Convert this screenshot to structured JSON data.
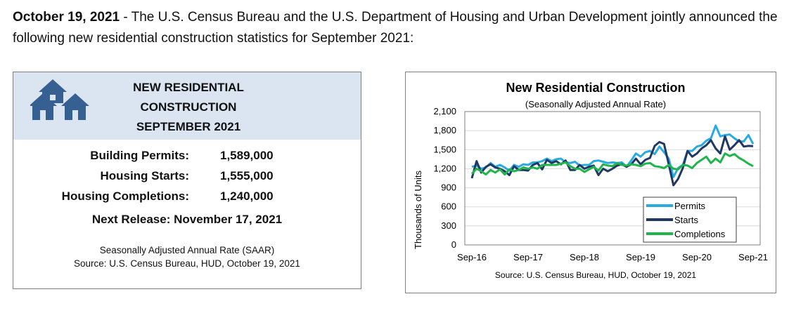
{
  "intro": {
    "date": "October 19, 2021",
    "text": " - The U.S. Census Bureau and the U.S. Department of Housing and Urban Development jointly announced the following new residential construction statistics for September 2021:"
  },
  "summary": {
    "title_lines": [
      "NEW RESIDENTIAL",
      "CONSTRUCTION",
      "SEPTEMBER 2021"
    ],
    "rows": [
      {
        "label": "Building Permits:",
        "value": "1,589,000"
      },
      {
        "label": "Housing Starts:",
        "value": "1,555,000"
      },
      {
        "label": "Housing Completions:",
        "value": "1,240,000"
      }
    ],
    "next_release": "Next Release:  November 17, 2021",
    "footnote_1": "Seasonally Adjusted Annual Rate (SAAR)",
    "footnote_2": "Source:  U.S. Census Bureau, HUD, October 19, 2021",
    "colors": {
      "header_bg": "#dbe5f1",
      "icon": "#376092"
    },
    "icon": "houses-icon"
  },
  "chart_data": {
    "type": "line",
    "title": "New Residential Construction",
    "subtitle": "(Seasonally Adjusted Annual Rate)",
    "ylabel": "Thousands of Units",
    "xlabel": "",
    "source": "Source: U.S. Census Bureau, HUD, October 19, 2021",
    "ylim": [
      0,
      2100
    ],
    "yticks": [
      0,
      300,
      600,
      900,
      1200,
      1500,
      1800,
      2100
    ],
    "ytick_labels": [
      "0",
      "300",
      "600",
      "900",
      "1,200",
      "1,500",
      "1,800",
      "2,100"
    ],
    "xtick_labels": [
      "Sep-16",
      "Sep-17",
      "Sep-18",
      "Sep-19",
      "Sep-20",
      "Sep-21"
    ],
    "xtick_index": [
      0,
      12,
      24,
      36,
      48,
      60
    ],
    "grid": true,
    "legend_position": "bottom-right",
    "x": [
      "Sep-16",
      "Oct-16",
      "Nov-16",
      "Dec-16",
      "Jan-17",
      "Feb-17",
      "Mar-17",
      "Apr-17",
      "May-17",
      "Jun-17",
      "Jul-17",
      "Aug-17",
      "Sep-17",
      "Oct-17",
      "Nov-17",
      "Dec-17",
      "Jan-18",
      "Feb-18",
      "Mar-18",
      "Apr-18",
      "May-18",
      "Jun-18",
      "Jul-18",
      "Aug-18",
      "Sep-18",
      "Oct-18",
      "Nov-18",
      "Dec-18",
      "Jan-19",
      "Feb-19",
      "Mar-19",
      "Apr-19",
      "May-19",
      "Jun-19",
      "Jul-19",
      "Aug-19",
      "Sep-19",
      "Oct-19",
      "Nov-19",
      "Dec-19",
      "Jan-20",
      "Feb-20",
      "Mar-20",
      "Apr-20",
      "May-20",
      "Jun-20",
      "Jul-20",
      "Aug-20",
      "Sep-20",
      "Oct-20",
      "Nov-20",
      "Dec-20",
      "Jan-21",
      "Feb-21",
      "Mar-21",
      "Apr-21",
      "May-21",
      "Jun-21",
      "Jul-21",
      "Aug-21",
      "Sep-21"
    ],
    "series": [
      {
        "name": "Permits",
        "color": "#29abe2",
        "values": [
          1230,
          1250,
          1200,
          1220,
          1290,
          1230,
          1260,
          1220,
          1170,
          1260,
          1230,
          1270,
          1260,
          1300,
          1300,
          1320,
          1360,
          1320,
          1350,
          1360,
          1300,
          1290,
          1310,
          1250,
          1260,
          1260,
          1320,
          1330,
          1310,
          1290,
          1300,
          1290,
          1300,
          1230,
          1330,
          1440,
          1390,
          1460,
          1480,
          1430,
          1550,
          1460,
          1360,
          1070,
          1210,
          1260,
          1480,
          1480,
          1550,
          1570,
          1640,
          1680,
          1880,
          1710,
          1730,
          1740,
          1680,
          1630,
          1630,
          1730,
          1589
        ]
      },
      {
        "name": "Starts",
        "color": "#203864",
        "values": [
          1050,
          1320,
          1140,
          1230,
          1270,
          1220,
          1200,
          1160,
          1100,
          1240,
          1180,
          1180,
          1170,
          1260,
          1290,
          1190,
          1340,
          1290,
          1320,
          1270,
          1330,
          1180,
          1180,
          1260,
          1200,
          1230,
          1250,
          1100,
          1200,
          1160,
          1200,
          1250,
          1270,
          1230,
          1270,
          1360,
          1270,
          1340,
          1370,
          1560,
          1620,
          1590,
          1270,
          940,
          1040,
          1210,
          1480,
          1390,
          1440,
          1520,
          1570,
          1650,
          1520,
          1440,
          1710,
          1500,
          1570,
          1650,
          1550,
          1560,
          1555
        ]
      },
      {
        "name": "Completions",
        "color": "#1fb54a",
        "values": [
          1120,
          1200,
          1160,
          1110,
          1180,
          1140,
          1190,
          1110,
          1190,
          1160,
          1180,
          1220,
          1200,
          1220,
          1200,
          1260,
          1260,
          1260,
          1260,
          1280,
          1300,
          1240,
          1200,
          1200,
          1150,
          1190,
          1230,
          1170,
          1270,
          1250,
          1240,
          1290,
          1260,
          1250,
          1270,
          1260,
          1240,
          1280,
          1290,
          1240,
          1230,
          1210,
          1260,
          1200,
          1190,
          1260,
          1250,
          1210,
          1290,
          1340,
          1390,
          1290,
          1360,
          1300,
          1440,
          1400,
          1430,
          1370,
          1330,
          1280,
          1240
        ]
      }
    ]
  }
}
